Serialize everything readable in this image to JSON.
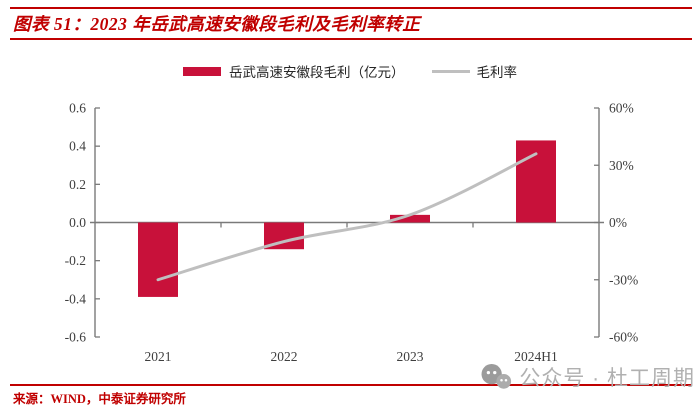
{
  "header": {
    "title": "图表 51：2023 年岳武高速安徽段毛利及毛利率转正"
  },
  "legend": {
    "items": [
      {
        "label": "岳武高速安徽段毛利（亿元）",
        "marker": "bar-swatch"
      },
      {
        "label": "毛利率",
        "marker": "line-swatch"
      }
    ]
  },
  "chart_data": {
    "type": "bar+line combo",
    "title": "2023 年岳武高速安徽段毛利及毛利率转正",
    "categories": [
      "2021",
      "2022",
      "2023",
      "2024H1"
    ],
    "series": [
      {
        "name": "岳武高速安徽段毛利（亿元）",
        "type": "bar",
        "axis": "left",
        "values": [
          -0.39,
          -0.14,
          0.04,
          0.43
        ]
      },
      {
        "name": "毛利率",
        "type": "line",
        "axis": "right",
        "values": [
          -30,
          -10,
          4,
          36
        ]
      }
    ],
    "y_left": {
      "min": -0.6,
      "max": 0.6,
      "step": 0.2,
      "decimals": 1
    },
    "y_right": {
      "min": -60,
      "max": 60,
      "step": 30,
      "suffix": "%"
    },
    "grid": false,
    "legend_position": "top",
    "line_smooth": true
  },
  "footer": {
    "source": "来源：WIND，中泰证券研究所"
  },
  "watermark": {
    "icon": "wechat-icon",
    "text": "公众号 · 杜工周期"
  },
  "colors": {
    "accent_red": "#C00000",
    "bar_red": "#C8113A",
    "line_gray": "#BFBFBF",
    "axis_gray": "#7a7a7a",
    "tick_text": "#3f3f3f",
    "watermark_gray": "#b0b0b0"
  }
}
